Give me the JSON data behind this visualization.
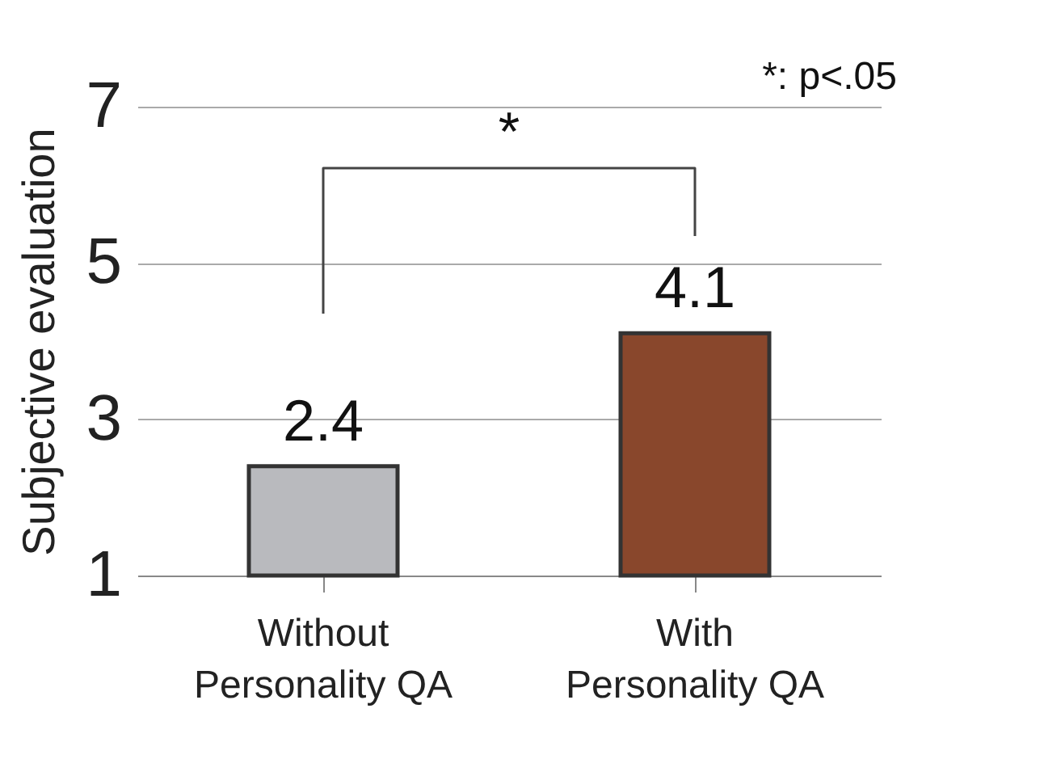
{
  "chart_data": {
    "type": "bar",
    "ylabel": "Subjective evaluation",
    "categories": [
      "Without Personality QA",
      "With Personality QA"
    ],
    "values": [
      2.4,
      4.1
    ],
    "colors": [
      "#b9babe",
      "#89472c"
    ],
    "ylim": [
      1,
      7
    ],
    "yticks": [
      1,
      3,
      5,
      7
    ],
    "grid": "y",
    "data_labels": true,
    "annotations": [
      "*",
      "*: p<.05"
    ]
  }
}
